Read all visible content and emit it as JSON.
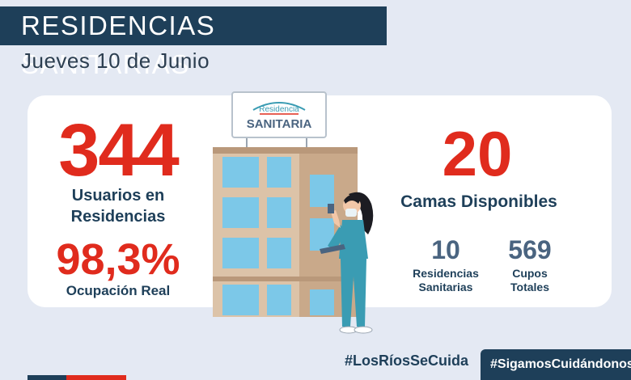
{
  "header": {
    "title": "RESIDENCIAS SANITARIAS",
    "subtitle": "Jueves 10 de Junio"
  },
  "stats": {
    "users_value": "344",
    "users_label_line1": "Usuarios en",
    "users_label_line2": "Residencias",
    "occupancy_value": "98,3%",
    "occupancy_label": "Ocupación Real",
    "beds_value": "20",
    "beds_label": "Camas Disponibles",
    "residences_value": "10",
    "residences_label_line1": "Residencias",
    "residences_label_line2": "Sanitarias",
    "slots_value": "569",
    "slots_label_line1": "Cupos",
    "slots_label_line2": "Totales"
  },
  "sign": {
    "line1": "Residencia",
    "line2": "SANITARIA"
  },
  "footer": {
    "hashtag_1": "#LosRíosSeCuida",
    "hashtag_2": "#SigamosCuidándonos"
  },
  "colors": {
    "navy": "#1e3f59",
    "red": "#e02b1d",
    "background": "#e4e9f3",
    "card": "#ffffff",
    "slate": "#4a6480",
    "teal": "#3a9cb3"
  },
  "icons": [
    "building-illustration",
    "nurse-illustration",
    "tablet-icon",
    "mobile-phone-icon"
  ]
}
